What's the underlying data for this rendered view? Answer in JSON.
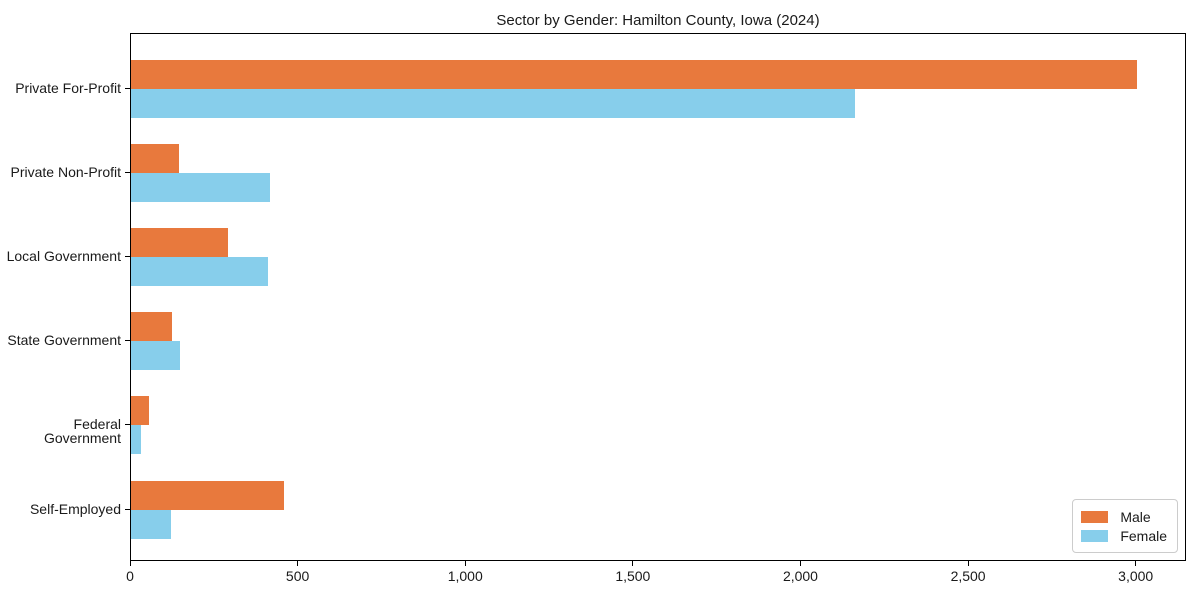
{
  "title": "Sector by Gender: Hamilton County, Iowa (2024)",
  "legend": {
    "position": "lower right",
    "items": [
      {
        "label": "Male",
        "color": "#e8793d"
      },
      {
        "label": "Female",
        "color": "#87ceeb"
      }
    ]
  },
  "chart_data": {
    "type": "bar",
    "orientation": "horizontal",
    "title": "Sector by Gender: Hamilton County, Iowa (2024)",
    "xlabel": "",
    "ylabel": "",
    "categories": [
      "Private For-Profit",
      "Private Non-Profit",
      "Local Government",
      "State Government",
      "Federal Government",
      "Self-Employed"
    ],
    "series": [
      {
        "name": "Male",
        "color": "#e8793d",
        "values": [
          3000,
          144,
          290,
          122,
          55,
          457
        ]
      },
      {
        "name": "Female",
        "color": "#87ceeb",
        "values": [
          2160,
          415,
          409,
          147,
          30,
          120
        ]
      }
    ],
    "xlim": [
      0,
      3150
    ],
    "xticks": [
      0,
      500,
      1000,
      1500,
      2000,
      2500,
      3000
    ],
    "xtick_labels": [
      "0",
      "500",
      "1,000",
      "1,500",
      "2,000",
      "2,500",
      "3,000"
    ],
    "grid": false,
    "legend_position": "lower right",
    "frame_color": "#000000"
  }
}
